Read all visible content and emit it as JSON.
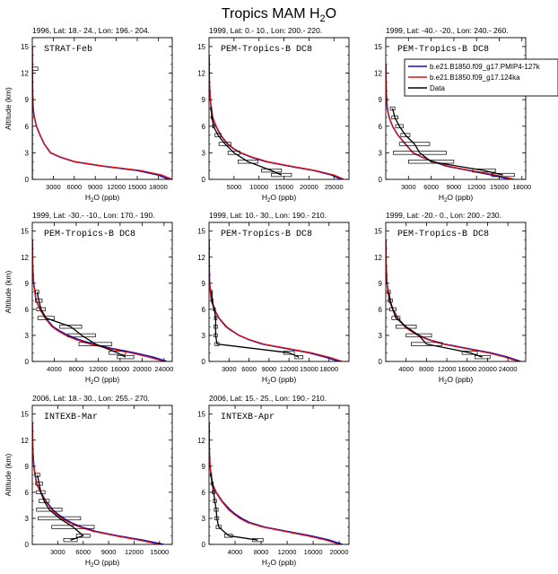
{
  "figure": {
    "title_main": "Tropics MAM H",
    "title_sub": "2",
    "title_tail": "O"
  },
  "legend": {
    "entries": [
      {
        "label": "b.e21.B1850.f09_g17.PMIP4-127k",
        "color": "#1010c0"
      },
      {
        "label": "b.e21.B1850.f09_g17.124ka",
        "color": "#e01010"
      },
      {
        "label": "Data",
        "color": "#000000"
      }
    ]
  },
  "chart_data": [
    {
      "type": "line",
      "title": "1996, Lat: 18.- 24., Lon: 196.- 204.",
      "campaign": "STRAT-Feb",
      "xlabel": "H2O (ppb)",
      "ylabel": "Altitude (km)",
      "xlim": [
        0,
        20000
      ],
      "ylim": [
        0,
        16
      ],
      "xticks": [
        3000,
        6000,
        9000,
        12000,
        15000,
        18000
      ],
      "yticks": [
        0,
        3,
        6,
        9,
        12,
        15
      ],
      "series": [
        {
          "name": "b.e21.B1850.f09_g17.PMIP4-127k",
          "x": [
            19500,
            18000,
            15000,
            10000,
            6000,
            4000,
            2600,
            1700,
            1100,
            600,
            300,
            120,
            40,
            10,
            5
          ],
          "y": [
            0,
            0.5,
            1,
            1.5,
            2,
            2.5,
            3,
            4,
            5,
            6,
            7,
            8,
            10,
            12,
            15
          ]
        },
        {
          "name": "b.e21.B1850.f09_g17.124ka",
          "x": [
            20000,
            18500,
            15500,
            10200,
            6100,
            4100,
            2650,
            1700,
            1100,
            600,
            300,
            120,
            40,
            10,
            5
          ],
          "y": [
            0,
            0.5,
            1,
            1.5,
            2,
            2.5,
            3,
            4,
            5,
            6,
            7,
            8,
            10,
            12,
            15
          ]
        },
        {
          "name": "Data",
          "x": [
            0,
            0,
            0,
            0
          ],
          "y": [
            0,
            1,
            11.5,
            12.5
          ],
          "xerr": [
            0,
            0,
            0,
            800
          ]
        }
      ]
    },
    {
      "type": "line",
      "title": "1999, Lat: 0.- 10., Lon: 200.- 220.",
      "campaign": "PEM-Tropics-B DC8",
      "xlabel": "H2O (ppb)",
      "ylabel": "Altitude (km)",
      "xlim": [
        0,
        28000
      ],
      "ylim": [
        0,
        16
      ],
      "xticks": [
        5000,
        10000,
        15000,
        20000,
        25000
      ],
      "yticks": [
        0,
        3,
        6,
        9,
        12,
        15
      ],
      "series": [
        {
          "name": "b.e21.B1850.f09_g17.PMIP4-127k",
          "x": [
            26500,
            24500,
            21000,
            16000,
            11500,
            8500,
            6300,
            4800,
            3700,
            2300,
            1400,
            700,
            250,
            70,
            15
          ],
          "y": [
            0,
            0.5,
            1,
            1.5,
            2,
            2.5,
            3,
            3.5,
            4,
            5,
            6,
            7,
            9,
            11,
            14
          ]
        },
        {
          "name": "b.e21.B1850.f09_g17.124ka",
          "x": [
            27000,
            25000,
            21300,
            16300,
            11700,
            8700,
            6400,
            4900,
            3800,
            2350,
            1450,
            720,
            260,
            70,
            15
          ],
          "y": [
            0,
            0.5,
            1,
            1.5,
            2,
            2.5,
            3,
            3.5,
            4,
            5,
            6,
            7,
            9,
            11,
            14
          ]
        },
        {
          "name": "Data",
          "x": [
            14500,
            12500,
            7800,
            5000,
            3200,
            1800,
            900,
            600,
            400
          ],
          "y": [
            0.5,
            1,
            2,
            3,
            4,
            5,
            6,
            7,
            8
          ],
          "xerr": [
            2000,
            2000,
            2000,
            1200,
            1200,
            600,
            200,
            150,
            100
          ]
        }
      ]
    },
    {
      "type": "line",
      "title": "1999, Lat: -40.- -20., Lon: 240.- 260.",
      "campaign": "PEM-Tropics-B DC8",
      "xlabel": "H2O (ppb)",
      "ylabel": "Altitude (km)",
      "xlim": [
        0,
        18500
      ],
      "ylim": [
        0,
        16
      ],
      "xticks": [
        3000,
        6000,
        9000,
        12000,
        15000,
        18000
      ],
      "yticks": [
        0,
        3,
        6,
        9,
        12,
        15
      ],
      "series": [
        {
          "name": "b.e21.B1850.f09_g17.PMIP4-127k",
          "x": [
            16500,
            14000,
            11000,
            8000,
            6300,
            4800,
            3600,
            2600,
            1600,
            900,
            450,
            200,
            60,
            15
          ],
          "y": [
            0,
            0.5,
            1,
            1.5,
            2,
            2.5,
            3,
            4,
            5,
            6,
            7,
            8,
            10,
            13
          ]
        },
        {
          "name": "b.e21.B1850.f09_g17.124ka",
          "x": [
            17000,
            14500,
            11300,
            8200,
            6400,
            4800,
            3600,
            2550,
            1600,
            900,
            450,
            200,
            60,
            15
          ],
          "y": [
            0,
            0.5,
            1,
            1.5,
            2,
            2.5,
            3,
            4,
            5,
            6,
            7,
            8,
            10,
            13
          ]
        },
        {
          "name": "Data",
          "x": [
            15500,
            13000,
            6000,
            4500,
            3800,
            2600,
            1800,
            1200,
            900
          ],
          "y": [
            0.5,
            1,
            2,
            3,
            4,
            5,
            6,
            7,
            8
          ],
          "xerr": [
            1500,
            1500,
            3000,
            3500,
            2000,
            600,
            500,
            400,
            300
          ]
        }
      ]
    },
    {
      "type": "line",
      "title": "1999, Lat: -30.- -10., Lon: 170.- 190.",
      "campaign": "PEM-Tropics-B DC8",
      "xlabel": "H2O (ppb)",
      "ylabel": "Altitude (km)",
      "xlim": [
        0,
        25500
      ],
      "ylim": [
        0,
        16
      ],
      "xticks": [
        4000,
        8000,
        12000,
        16000,
        20000,
        24000
      ],
      "yticks": [
        0,
        3,
        6,
        9,
        12,
        15
      ],
      "series": [
        {
          "name": "b.e21.B1850.f09_g17.PMIP4-127k",
          "x": [
            24500,
            22000,
            18500,
            14500,
            11000,
            8500,
            6500,
            5000,
            3800,
            2400,
            1400,
            700,
            250,
            70,
            15
          ],
          "y": [
            0,
            0.5,
            1,
            1.5,
            2,
            2.5,
            3,
            3.5,
            4,
            5,
            6,
            7,
            9,
            11,
            14
          ]
        },
        {
          "name": "b.e21.B1850.f09_g17.124ka",
          "x": [
            24000,
            21300,
            17800,
            13900,
            10500,
            8000,
            6100,
            4700,
            3600,
            2300,
            1400,
            700,
            250,
            70,
            15
          ],
          "y": [
            0,
            0.5,
            1,
            1.5,
            2,
            2.5,
            3,
            3.5,
            4,
            5,
            6,
            7,
            9,
            11,
            14
          ]
        },
        {
          "name": "Data",
          "x": [
            17000,
            15500,
            11500,
            9000,
            7000,
            2500,
            1600,
            1200,
            900
          ],
          "y": [
            0.5,
            1,
            2,
            3,
            4,
            5,
            6,
            7,
            8
          ],
          "xerr": [
            1500,
            1500,
            3000,
            2500,
            2000,
            1500,
            800,
            600,
            300
          ]
        }
      ]
    },
    {
      "type": "line",
      "title": "1999, Lat: 10.- 30., Lon: 190.- 210.",
      "campaign": "PEM-Tropics-B DC8",
      "xlabel": "H2O (ppb)",
      "ylabel": "Altitude (km)",
      "xlim": [
        0,
        21000
      ],
      "ylim": [
        0,
        16
      ],
      "xticks": [
        3000,
        6000,
        9000,
        12000,
        15000,
        18000
      ],
      "yticks": [
        0,
        3,
        6,
        9,
        12,
        15
      ],
      "series": [
        {
          "name": "b.e21.B1850.f09_g17.PMIP4-127k",
          "x": [
            19500,
            17500,
            15000,
            11500,
            8000,
            6000,
            4500,
            3500,
            2600,
            1500,
            800,
            350,
            100,
            25,
            5
          ],
          "y": [
            0,
            0.5,
            1,
            1.5,
            2,
            2.5,
            3,
            3.5,
            4,
            5,
            6,
            7,
            9,
            11,
            14
          ]
        },
        {
          "name": "b.e21.B1850.f09_g17.124ka",
          "x": [
            20000,
            18000,
            15300,
            11800,
            8200,
            6100,
            4500,
            3400,
            2500,
            1450,
            800,
            350,
            100,
            25,
            5
          ],
          "y": [
            0,
            0.5,
            1,
            1.5,
            2,
            2.5,
            3,
            3.5,
            4,
            5,
            6,
            7,
            9,
            11,
            14
          ]
        },
        {
          "name": "Data",
          "x": [
            13500,
            12000,
            1200,
            1000,
            1000,
            1000,
            800,
            500,
            400
          ],
          "y": [
            0.5,
            1,
            2,
            3,
            4,
            5,
            6,
            7,
            8
          ],
          "xerr": [
            600,
            800,
            300,
            250,
            250,
            200,
            150,
            100,
            100
          ]
        }
      ]
    },
    {
      "type": "line",
      "title": "1999, Lat: -20.- 0., Lon: 200.- 230.",
      "campaign": "PEM-Tropics-B DC8",
      "xlabel": "H2O (ppb)",
      "ylabel": "Altitude (km)",
      "xlim": [
        0,
        27500
      ],
      "ylim": [
        0,
        16
      ],
      "xticks": [
        4000,
        8000,
        12000,
        16000,
        20000,
        24000
      ],
      "yticks": [
        0,
        3,
        6,
        9,
        12,
        15
      ],
      "series": [
        {
          "name": "b.e21.B1850.f09_g17.PMIP4-127k",
          "x": [
            26500,
            24000,
            20500,
            16000,
            11500,
            8500,
            6500,
            5000,
            3800,
            2400,
            1400,
            700,
            250,
            70,
            15
          ],
          "y": [
            0,
            0.5,
            1,
            1.5,
            2,
            2.5,
            3,
            3.5,
            4,
            5,
            6,
            7,
            9,
            11,
            14
          ]
        },
        {
          "name": "b.e21.B1850.f09_g17.124ka",
          "x": [
            26000,
            23500,
            20000,
            15600,
            11200,
            8300,
            6300,
            4900,
            3700,
            2350,
            1400,
            700,
            250,
            70,
            15
          ],
          "y": [
            0,
            0.5,
            1,
            1.5,
            2,
            2.5,
            3,
            3.5,
            4,
            5,
            6,
            7,
            9,
            11,
            14
          ]
        },
        {
          "name": "Data",
          "x": [
            19000,
            16500,
            8000,
            6500,
            4000,
            2000,
            1400,
            900,
            600
          ],
          "y": [
            0.5,
            1,
            2,
            3,
            4,
            5,
            6,
            7,
            8
          ],
          "xerr": [
            1500,
            1500,
            3000,
            2500,
            2000,
            800,
            600,
            400,
            300
          ]
        }
      ]
    },
    {
      "type": "line",
      "title": "2006, Lat: 18.- 30., Lon: 255.- 270.",
      "campaign": "INTEXB-Mar",
      "xlabel": "H2O (ppb)",
      "ylabel": "Altitude (km)",
      "xlim": [
        0,
        16500
      ],
      "ylim": [
        0,
        16
      ],
      "xticks": [
        3000,
        6000,
        9000,
        12000,
        15000
      ],
      "yticks": [
        0,
        3,
        6,
        9,
        12,
        15
      ],
      "series": [
        {
          "name": "b.e21.B1850.f09_g17.PMIP4-127k",
          "x": [
            15500,
            13000,
            10000,
            7500,
            5800,
            4600,
            3700,
            3000,
            2400,
            1600,
            1000,
            500,
            180,
            50,
            10
          ],
          "y": [
            0,
            0.5,
            1,
            1.5,
            2,
            2.5,
            3,
            3.5,
            4,
            5,
            6,
            7,
            9,
            11,
            14
          ]
        },
        {
          "name": "b.e21.B1850.f09_g17.124ka",
          "x": [
            15000,
            12600,
            9700,
            7200,
            5600,
            4400,
            3500,
            2850,
            2300,
            1550,
            980,
            490,
            175,
            50,
            10
          ],
          "y": [
            0,
            0.5,
            1,
            1.5,
            2,
            2.5,
            3,
            3.5,
            4,
            5,
            6,
            7,
            9,
            11,
            14
          ]
        },
        {
          "name": "Data",
          "x": [
            4500,
            6000,
            4800,
            3200,
            2000,
            1400,
            1000,
            800,
            600
          ],
          "y": [
            0.5,
            1,
            2,
            3,
            4,
            5,
            6,
            7,
            8
          ],
          "xerr": [
            800,
            800,
            2500,
            2500,
            1500,
            600,
            500,
            400,
            300
          ]
        }
      ]
    },
    {
      "type": "line",
      "title": "2006, Lat: 15.- 25., Lon: 190.- 210.",
      "campaign": "INTEXB-Apr",
      "xlabel": "H2O (ppb)",
      "ylabel": "Altitude (km)",
      "xlim": [
        0,
        21500
      ],
      "ylim": [
        0,
        16
      ],
      "xticks": [
        4000,
        8000,
        12000,
        16000,
        20000
      ],
      "yticks": [
        0,
        3,
        6,
        9,
        12,
        15
      ],
      "series": [
        {
          "name": "b.e21.B1850.f09_g17.PMIP4-127k",
          "x": [
            20500,
            18500,
            15500,
            12000,
            8500,
            6300,
            5000,
            4000,
            3200,
            2000,
            1100,
            500,
            150,
            40,
            10
          ],
          "y": [
            0,
            0.5,
            1,
            1.5,
            2,
            2.5,
            3,
            3.5,
            4,
            5,
            6,
            7,
            9,
            11,
            14
          ]
        },
        {
          "name": "b.e21.B1850.f09_g17.124ka",
          "x": [
            20000,
            18000,
            15000,
            11600,
            8200,
            6000,
            4700,
            3800,
            3000,
            1900,
            1050,
            480,
            150,
            40,
            10
          ],
          "y": [
            0,
            0.5,
            1,
            1.5,
            2,
            2.5,
            3,
            3.5,
            4,
            5,
            6,
            7,
            9,
            11,
            14
          ]
        },
        {
          "name": "Data",
          "x": [
            7500,
            3000,
            1500,
            1200,
            1100,
            900,
            700,
            500,
            300
          ],
          "y": [
            0.5,
            1,
            2,
            3,
            4,
            5,
            6,
            7,
            8
          ],
          "xerr": [
            800,
            600,
            400,
            300,
            300,
            250,
            200,
            150,
            100
          ]
        }
      ]
    }
  ]
}
